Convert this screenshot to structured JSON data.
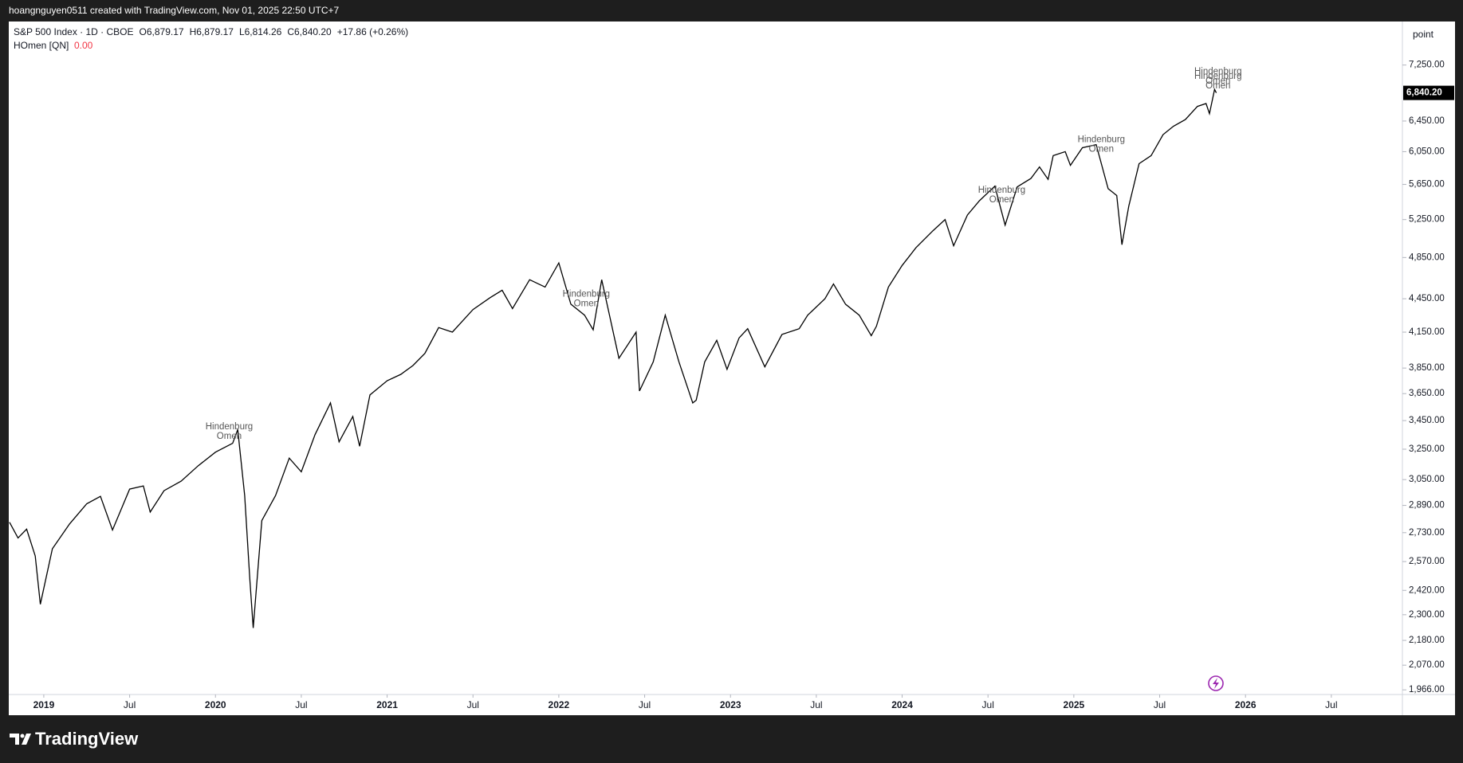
{
  "header": {
    "credit": "hoangnguyen0511 created with TradingView.com, Nov 01, 2025 22:50 UTC+7",
    "logo": "TradingView"
  },
  "chart_data": {
    "type": "line",
    "symbol": "S&P 500 Index · 1D · CBOE",
    "ohlc": [
      "O6,879.17",
      "H6,879.17",
      "L6,814.26",
      "C6,840.20"
    ],
    "change": "+17.86 (+0.26%)",
    "indicator": {
      "name": "HOmen [QN]",
      "value": "0.00"
    },
    "y_unit": "point",
    "last_price_label": "6,840.20",
    "color": "#000000",
    "log_scale": true,
    "x": [
      2018.8,
      2018.85,
      2018.9,
      2018.95,
      2018.98,
      2019.05,
      2019.15,
      2019.25,
      2019.33,
      2019.4,
      2019.5,
      2019.58,
      2019.62,
      2019.7,
      2019.8,
      2019.9,
      2020.0,
      2020.1,
      2020.13,
      2020.17,
      2020.2,
      2020.22,
      2020.27,
      2020.35,
      2020.43,
      2020.5,
      2020.58,
      2020.67,
      2020.72,
      2020.8,
      2020.84,
      2020.9,
      2021.0,
      2021.08,
      2021.15,
      2021.22,
      2021.3,
      2021.38,
      2021.5,
      2021.6,
      2021.67,
      2021.73,
      2021.83,
      2021.92,
      2022.0,
      2022.07,
      2022.15,
      2022.2,
      2022.25,
      2022.35,
      2022.45,
      2022.47,
      2022.55,
      2022.62,
      2022.7,
      2022.78,
      2022.8,
      2022.85,
      2022.92,
      2022.98,
      2023.05,
      2023.1,
      2023.2,
      2023.3,
      2023.4,
      2023.45,
      2023.55,
      2023.6,
      2023.67,
      2023.75,
      2023.82,
      2023.85,
      2023.92,
      2024.0,
      2024.08,
      2024.18,
      2024.25,
      2024.3,
      2024.38,
      2024.45,
      2024.54,
      2024.6,
      2024.67,
      2024.75,
      2024.8,
      2024.85,
      2024.88,
      2024.95,
      2024.98,
      2025.05,
      2025.13,
      2025.2,
      2025.25,
      2025.28,
      2025.32,
      2025.38,
      2025.45,
      2025.52,
      2025.58,
      2025.65,
      2025.72,
      2025.77,
      2025.79,
      2025.82,
      2025.83
    ],
    "values": [
      2790,
      2700,
      2750,
      2600,
      2351,
      2640,
      2780,
      2900,
      2945,
      2745,
      2990,
      3010,
      2850,
      2980,
      3040,
      3140,
      3230,
      3290,
      3386,
      2950,
      2480,
      2237,
      2800,
      2950,
      3190,
      3100,
      3350,
      3580,
      3300,
      3480,
      3270,
      3640,
      3750,
      3800,
      3870,
      3970,
      4190,
      4150,
      4350,
      4460,
      4530,
      4360,
      4630,
      4560,
      4796,
      4400,
      4300,
      4170,
      4630,
      3930,
      4150,
      3670,
      3900,
      4300,
      3900,
      3580,
      3600,
      3900,
      4080,
      3840,
      4100,
      4180,
      3860,
      4130,
      4180,
      4300,
      4450,
      4590,
      4400,
      4300,
      4120,
      4200,
      4560,
      4770,
      4950,
      5130,
      5250,
      4970,
      5300,
      5460,
      5630,
      5190,
      5620,
      5720,
      5860,
      5710,
      6000,
      6050,
      5880,
      6100,
      6140,
      5600,
      5520,
      4982,
      5400,
      5900,
      6000,
      6270,
      6380,
      6470,
      6650,
      6690,
      6550,
      6890,
      6840.2
    ],
    "xlim": [
      2018.796,
      2026.914
    ],
    "xticks": [
      2019,
      {
        "value": 2019.5,
        "label": "Jul"
      },
      2020,
      {
        "value": 2020.5,
        "label": "Jul"
      },
      2021,
      {
        "value": 2021.5,
        "label": "Jul"
      },
      2022,
      {
        "value": 2022.5,
        "label": "Jul"
      },
      2023,
      {
        "value": 2023.5,
        "label": "Jul"
      },
      2024,
      {
        "value": 2024.5,
        "label": "Jul"
      },
      2025,
      {
        "value": 2025.5,
        "label": "Jul"
      },
      2026,
      {
        "value": 2026.5,
        "label": "Jul"
      }
    ],
    "ylim": [
      1947,
      7940
    ],
    "yticks": [
      {
        "value": 1966,
        "label": "1,966.00"
      },
      {
        "value": 2070,
        "label": "2,070.00"
      },
      {
        "value": 2180,
        "label": "2,180.00"
      },
      {
        "value": 2300,
        "label": "2,300.00"
      },
      {
        "value": 2420,
        "label": "2,420.00"
      },
      {
        "value": 2570,
        "label": "2,570.00"
      },
      {
        "value": 2730,
        "label": "2,730.00"
      },
      {
        "value": 2890,
        "label": "2,890.00"
      },
      {
        "value": 3050,
        "label": "3,050.00"
      },
      {
        "value": 3250,
        "label": "3,250.00"
      },
      {
        "value": 3450,
        "label": "3,450.00"
      },
      {
        "value": 3650,
        "label": "3,650.00"
      },
      {
        "value": 3850,
        "label": "3,850.00"
      },
      {
        "value": 4150,
        "label": "4,150.00"
      },
      {
        "value": 4450,
        "label": "4,450.00"
      },
      {
        "value": 4850,
        "label": "4,850.00"
      },
      {
        "value": 5250,
        "label": "5,250.00"
      },
      {
        "value": 5650,
        "label": "5,650.00"
      },
      {
        "value": 6050,
        "label": "6,050.00"
      },
      {
        "value": 6450,
        "label": "6,450.00"
      },
      {
        "value": 7250,
        "label": "7,250.00"
      }
    ],
    "annotations": [
      {
        "x": 2020.08,
        "y": 3405,
        "label": [
          "Hindenburg",
          "Omen"
        ]
      },
      {
        "x": 2022.16,
        "y": 4490,
        "label": [
          "Hindenburg",
          "Omen"
        ]
      },
      {
        "x": 2024.58,
        "y": 5580,
        "label": [
          "Hindenburg",
          "Omen"
        ]
      },
      {
        "x": 2025.16,
        "y": 6200,
        "label": [
          "Hindenburg",
          "Omen"
        ]
      },
      {
        "x": 2025.84,
        "y": 7150,
        "label": [
          "Hindenburg",
          "Omen"
        ]
      },
      {
        "x": 2025.84,
        "y": 7080,
        "label": [
          "Hindenburg",
          "Omen"
        ]
      }
    ]
  }
}
